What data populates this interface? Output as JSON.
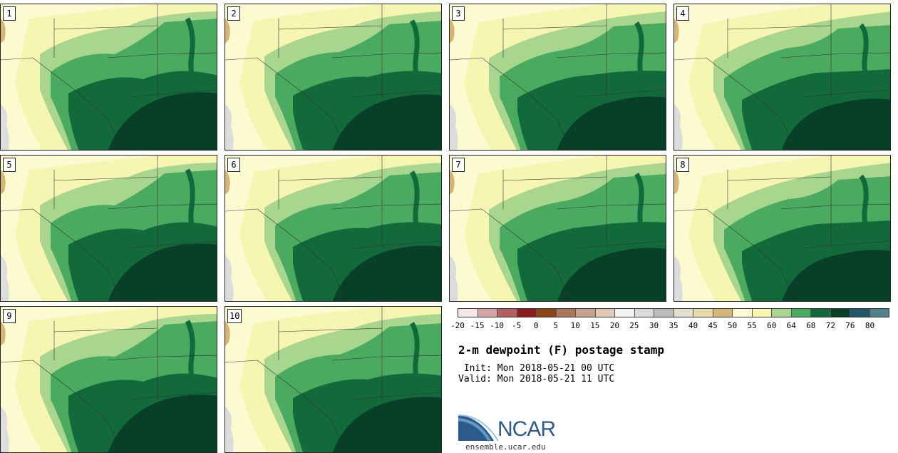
{
  "panels": [
    "1",
    "2",
    "3",
    "4",
    "5",
    "6",
    "7",
    "8",
    "9",
    "10"
  ],
  "colorbar": {
    "colors": [
      "#f6e7e7",
      "#d7a5a5",
      "#b35f5f",
      "#8d1c1c",
      "#8b4614",
      "#a97858",
      "#c6a08d",
      "#e2c9b5",
      "#f1f1f1",
      "#dcdcdc",
      "#bdbdbd",
      "#e3e0d2",
      "#e7dca9",
      "#d6b575",
      "#fbfad1",
      "#f6f5b2",
      "#a9d68e",
      "#4aaa60",
      "#12693a",
      "#083f29",
      "#21576a",
      "#4e8389"
    ],
    "ticks": [
      "-20",
      "-15",
      "-10",
      "-5",
      "0",
      "5",
      "10",
      "15",
      "20",
      "25",
      "30",
      "35",
      "40",
      "45",
      "50",
      "55",
      "60",
      "64",
      "68",
      "72",
      "76",
      "80"
    ]
  },
  "title": "2-m dewpoint (F) postage stamp",
  "init_line": " Init: Mon 2018-05-21 00 UTC",
  "valid_line": "Valid: Mon 2018-05-21 11 UTC",
  "logo_text": "NCAR",
  "site": "ensemble.ucar.edu",
  "map_colors": {
    "dry": "#fbfad1",
    "yellow": "#f6f5b2",
    "light_green": "#a9d68e",
    "mid_green": "#4aaa60",
    "dark_green": "#12693a",
    "darkest": "#083f29",
    "brown": "#d6b575",
    "gray": "#dcdcdc",
    "border": "#333333"
  }
}
